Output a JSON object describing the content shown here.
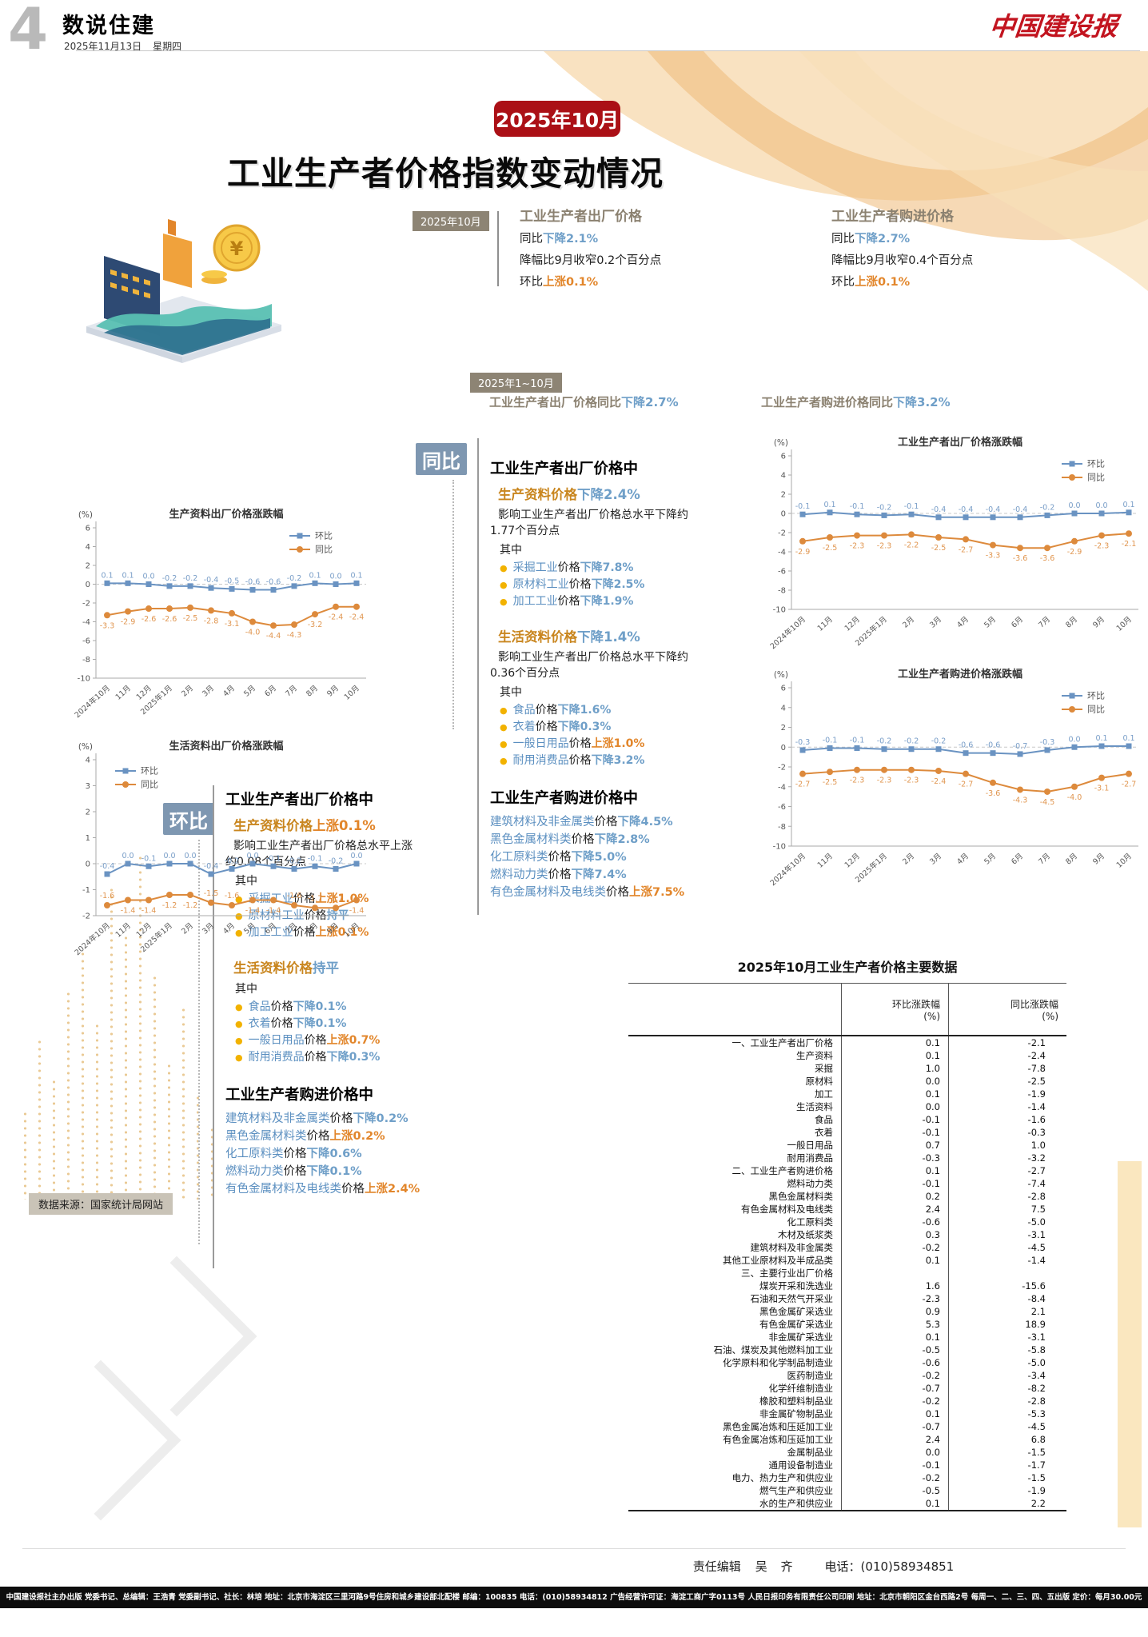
{
  "page": {
    "number": "4",
    "section": "数说住建",
    "date": "2025年11月13日",
    "weekday": "星期四",
    "brand": "中国建设报"
  },
  "hero": {
    "badge": "2025年10月",
    "title": "工业生产者价格指数变动情况"
  },
  "colors": {
    "accent_red": "#ab1016",
    "down_blue": "#6f9fc8",
    "up_orange": "#e2862b",
    "mom_line": "#6a93c2",
    "yoy_line": "#dd8a3c",
    "label_box": "#7e97b1"
  },
  "summary": {
    "badge": "2025年10月",
    "cards": [
      {
        "title": "工业生产者出厂价格",
        "yoy_label": "同比",
        "yoy_verb": "下降",
        "yoy_value": "2.1%",
        "note": "降幅比9月收窄0.2个百分点",
        "mom_label": "环比",
        "mom_verb": "上涨",
        "mom_value": "0.1%"
      },
      {
        "title": "工业生产者购进价格",
        "yoy_label": "同比",
        "yoy_verb": "下降",
        "yoy_value": "2.7%",
        "note": "降幅比9月收窄0.4个百分点",
        "mom_label": "环比",
        "mom_verb": "上涨",
        "mom_value": "0.1%"
      }
    ],
    "ytd_badge": "2025年1~10月",
    "ytd_items": [
      {
        "prefix": "工业生产者出厂价格同比",
        "verb": "下降",
        "value": "2.7%"
      },
      {
        "prefix": "工业生产者购进价格同比",
        "verb": "下降",
        "value": "3.2%"
      }
    ]
  },
  "yoy": {
    "label": "同比",
    "blocks": [
      {
        "type": "heading",
        "text": "工业生产者出厂价格中"
      },
      {
        "type": "subhead",
        "name": "生产资料价格",
        "verb": "下降",
        "value": "2.4%"
      },
      {
        "type": "para",
        "text": "影响工业生产者出厂价格总水平下降约"
      },
      {
        "type": "para2",
        "text": "1.77个百分点"
      },
      {
        "type": "qizhong",
        "text": "其中"
      },
      {
        "type": "bullet",
        "name": "采掘工业",
        "mid": "价格",
        "verb": "下降",
        "value": "7.8%"
      },
      {
        "type": "bullet",
        "name": "原材料工业",
        "mid": "价格",
        "verb": "下降",
        "value": "2.5%"
      },
      {
        "type": "bullet",
        "name": "加工工业",
        "mid": "价格",
        "verb": "下降",
        "value": "1.9%"
      },
      {
        "type": "gap"
      },
      {
        "type": "subhead",
        "name": "生活资料价格",
        "verb": "下降",
        "value": "1.4%"
      },
      {
        "type": "para",
        "text": "影响工业生产者出厂价格总水平下降约"
      },
      {
        "type": "para2",
        "text": "0.36个百分点"
      },
      {
        "type": "qizhong",
        "text": "其中"
      },
      {
        "type": "bullet",
        "name": "食品",
        "mid": "价格",
        "verb": "下降",
        "value": "1.6%"
      },
      {
        "type": "bullet",
        "name": "衣着",
        "mid": "价格",
        "verb": "下降",
        "value": "0.3%"
      },
      {
        "type": "bullet",
        "name": "一般日用品",
        "mid": "价格",
        "verb": "上涨",
        "value": "1.0%"
      },
      {
        "type": "bullet",
        "name": "耐用消费品",
        "mid": "价格",
        "verb": "下降",
        "value": "3.2%"
      },
      {
        "type": "gap"
      },
      {
        "type": "heading",
        "text": "工业生产者购进价格中"
      },
      {
        "type": "item",
        "name": "建筑材料及非金属类",
        "mid": "价格",
        "verb": "下降",
        "value": "4.5%"
      },
      {
        "type": "item",
        "name": "黑色金属材料类",
        "mid": "价格",
        "verb": "下降",
        "value": "2.8%"
      },
      {
        "type": "item",
        "name": "化工原料类",
        "mid": "价格",
        "verb": "下降",
        "value": "5.0%"
      },
      {
        "type": "item",
        "name": "燃料动力类",
        "mid": "价格",
        "verb": "下降",
        "value": "7.4%"
      },
      {
        "type": "item",
        "name": "有色金属材料及电线类",
        "mid": "价格",
        "verb": "上涨",
        "value": "7.5%"
      }
    ]
  },
  "mom": {
    "label": "环比",
    "blocks": [
      {
        "type": "heading",
        "text": "工业生产者出厂价格中"
      },
      {
        "type": "subhead",
        "name": "生产资料价格",
        "verb": "上涨",
        "value": "0.1%"
      },
      {
        "type": "para",
        "text": "影响工业生产者出厂价格总水平上涨"
      },
      {
        "type": "para2",
        "text": "约0.08个百分点"
      },
      {
        "type": "qizhong",
        "text": "其中"
      },
      {
        "type": "bullet",
        "name": "采掘工业",
        "mid": "价格",
        "verb": "上涨",
        "value": "1.0%"
      },
      {
        "type": "bullet",
        "name": "原材料工业",
        "mid": "价格",
        "verb": "持平",
        "value": ""
      },
      {
        "type": "bullet",
        "name": "加工工业",
        "mid": "价格",
        "verb": "上涨",
        "value": "0.1%"
      },
      {
        "type": "gap"
      },
      {
        "type": "subhead",
        "name": "生活资料价格",
        "verb": "持平",
        "value": ""
      },
      {
        "type": "qizhong",
        "text": "其中"
      },
      {
        "type": "bullet",
        "name": "食品",
        "mid": "价格",
        "verb": "下降",
        "value": "0.1%"
      },
      {
        "type": "bullet",
        "name": "衣着",
        "mid": "价格",
        "verb": "下降",
        "value": "0.1%"
      },
      {
        "type": "bullet",
        "name": "一般日用品",
        "mid": "价格",
        "verb": "上涨",
        "value": "0.7%"
      },
      {
        "type": "bullet",
        "name": "耐用消费品",
        "mid": "价格",
        "verb": "下降",
        "value": "0.3%"
      },
      {
        "type": "gap"
      },
      {
        "type": "heading",
        "text": "工业生产者购进价格中"
      },
      {
        "type": "item",
        "name": "建筑材料及非金属类",
        "mid": "价格",
        "verb": "下降",
        "value": "0.2%"
      },
      {
        "type": "item",
        "name": "黑色金属材料类",
        "mid": "价格",
        "verb": "上涨",
        "value": "0.2%"
      },
      {
        "type": "item",
        "name": "化工原料类",
        "mid": "价格",
        "verb": "下降",
        "value": "0.6%"
      },
      {
        "type": "item",
        "name": "燃料动力类",
        "mid": "价格",
        "verb": "下降",
        "value": "0.1%"
      },
      {
        "type": "item",
        "name": "有色金属材料及电线类",
        "mid": "价格",
        "verb": "上涨",
        "value": "2.4%"
      }
    ]
  },
  "chart_data": [
    {
      "type": "line",
      "title": "生产资料出厂价格涨跌幅",
      "unit": "(%)",
      "legend": "right",
      "legend_position": "top-right",
      "categories": [
        "2024年10月",
        "11月",
        "12月",
        "2025年1月",
        "2月",
        "3月",
        "4月",
        "5月",
        "6月",
        "7月",
        "8月",
        "9月",
        "10月"
      ],
      "ylim": [
        -10,
        6
      ],
      "yticks": [
        6,
        4,
        2,
        0,
        -2,
        -4,
        -6,
        -8,
        -10
      ],
      "grid": false,
      "series": [
        {
          "name": "环比",
          "color": "#6a93c2",
          "marker": "square",
          "values": [
            0.1,
            0.1,
            0.0,
            -0.2,
            -0.2,
            -0.4,
            -0.5,
            -0.6,
            -0.6,
            -0.2,
            0.1,
            0.0,
            0.1
          ]
        },
        {
          "name": "同比",
          "color": "#dd8a3c",
          "marker": "circle",
          "values": [
            -3.3,
            -2.9,
            -2.6,
            -2.6,
            -2.5,
            -2.8,
            -3.1,
            -4.0,
            -4.4,
            -4.3,
            -3.2,
            -2.4,
            -2.4
          ]
        }
      ]
    },
    {
      "type": "line",
      "title": "生活资料出厂价格涨跌幅",
      "unit": "(%)",
      "legend": "left",
      "legend_position": "top-left",
      "categories": [
        "2024年10月",
        "11月",
        "12月",
        "2025年1月",
        "2月",
        "3月",
        "4月",
        "5月",
        "6月",
        "7月",
        "8月",
        "9月",
        "10月"
      ],
      "ylim": [
        -2,
        4
      ],
      "yticks": [
        4,
        3,
        2,
        1,
        0,
        -1,
        -2
      ],
      "grid": false,
      "series": [
        {
          "name": "环比",
          "color": "#6a93c2",
          "marker": "square",
          "values": [
            -0.4,
            0.0,
            -0.1,
            0.0,
            0.0,
            -0.4,
            -0.2,
            0.0,
            -0.1,
            -0.2,
            -0.1,
            -0.2,
            0.0
          ]
        },
        {
          "name": "同比",
          "color": "#dd8a3c",
          "marker": "circle",
          "values": [
            -1.6,
            -1.4,
            -1.4,
            -1.2,
            -1.2,
            -1.5,
            -1.6,
            -1.4,
            -1.4,
            -1.6,
            -1.7,
            -1.7,
            -1.4
          ]
        }
      ]
    },
    {
      "type": "line",
      "title": "工业生产者出厂价格涨跌幅",
      "unit": "(%)",
      "legend": "right",
      "legend_position": "top-right",
      "categories": [
        "2024年10月",
        "11月",
        "12月",
        "2025年1月",
        "2月",
        "3月",
        "4月",
        "5月",
        "6月",
        "7月",
        "8月",
        "9月",
        "10月"
      ],
      "ylim": [
        -10,
        6
      ],
      "yticks": [
        6,
        4,
        2,
        0,
        -2,
        -4,
        -6,
        -8,
        -10
      ],
      "grid": false,
      "series": [
        {
          "name": "环比",
          "color": "#6a93c2",
          "marker": "square",
          "values": [
            -0.1,
            0.1,
            -0.1,
            -0.2,
            -0.1,
            -0.4,
            -0.4,
            -0.4,
            -0.4,
            -0.2,
            0.0,
            0.0,
            0.1
          ]
        },
        {
          "name": "同比",
          "color": "#dd8a3c",
          "marker": "circle",
          "values": [
            -2.9,
            -2.5,
            -2.3,
            -2.3,
            -2.2,
            -2.5,
            -2.7,
            -3.3,
            -3.6,
            -3.6,
            -2.9,
            -2.3,
            -2.1
          ]
        }
      ]
    },
    {
      "type": "line",
      "title": "工业生产者购进价格涨跌幅",
      "unit": "(%)",
      "legend": "right",
      "legend_position": "top-right",
      "categories": [
        "2024年10月",
        "11月",
        "12月",
        "2025年1月",
        "2月",
        "3月",
        "4月",
        "5月",
        "6月",
        "7月",
        "8月",
        "9月",
        "10月"
      ],
      "ylim": [
        -10,
        6
      ],
      "yticks": [
        6,
        4,
        2,
        0,
        -2,
        -4,
        -6,
        -8,
        -10
      ],
      "grid": false,
      "series": [
        {
          "name": "环比",
          "color": "#6a93c2",
          "marker": "square",
          "values": [
            -0.3,
            -0.1,
            -0.1,
            -0.2,
            -0.2,
            -0.2,
            -0.6,
            -0.6,
            -0.7,
            -0.3,
            0.0,
            0.1,
            0.1
          ]
        },
        {
          "name": "同比",
          "color": "#dd8a3c",
          "marker": "circle",
          "values": [
            -2.7,
            -2.5,
            -2.3,
            -2.3,
            -2.3,
            -2.4,
            -2.7,
            -3.6,
            -4.3,
            -4.5,
            -4.0,
            -3.1,
            -2.7
          ]
        }
      ]
    }
  ],
  "table": {
    "title": "2025年10月工业生产者价格主要数据",
    "col_headers": [
      {
        "label": "环比涨跌幅",
        "unit": "(%)"
      },
      {
        "label": "同比涨跌幅",
        "unit": "(%)"
      }
    ],
    "rows": [
      {
        "label": "一、工业生产者出厂价格",
        "mom": "0.1",
        "yoy": "-2.1"
      },
      {
        "label": "生产资料",
        "mom": "0.1",
        "yoy": "-2.4"
      },
      {
        "label": "采掘",
        "mom": "1.0",
        "yoy": "-7.8"
      },
      {
        "label": "原材料",
        "mom": "0.0",
        "yoy": "-2.5"
      },
      {
        "label": "加工",
        "mom": "0.1",
        "yoy": "-1.9"
      },
      {
        "label": "生活资料",
        "mom": "0.0",
        "yoy": "-1.4"
      },
      {
        "label": "食品",
        "mom": "-0.1",
        "yoy": "-1.6"
      },
      {
        "label": "衣着",
        "mom": "-0.1",
        "yoy": "-0.3"
      },
      {
        "label": "一般日用品",
        "mom": "0.7",
        "yoy": "1.0"
      },
      {
        "label": "耐用消费品",
        "mom": "-0.3",
        "yoy": "-3.2"
      },
      {
        "label": "二、工业生产者购进价格",
        "mom": "0.1",
        "yoy": "-2.7"
      },
      {
        "label": "燃料动力类",
        "mom": "-0.1",
        "yoy": "-7.4"
      },
      {
        "label": "黑色金属材料类",
        "mom": "0.2",
        "yoy": "-2.8"
      },
      {
        "label": "有色金属材料及电线类",
        "mom": "2.4",
        "yoy": "7.5"
      },
      {
        "label": "化工原料类",
        "mom": "-0.6",
        "yoy": "-5.0"
      },
      {
        "label": "木材及纸浆类",
        "mom": "0.3",
        "yoy": "-3.1"
      },
      {
        "label": "建筑材料及非金属类",
        "mom": "-0.2",
        "yoy": "-4.5"
      },
      {
        "label": "其他工业原材料及半成品类",
        "mom": "0.1",
        "yoy": "-1.4"
      },
      {
        "label": "三、主要行业出厂价格",
        "mom": "",
        "yoy": ""
      },
      {
        "label": "煤炭开采和洗选业",
        "mom": "1.6",
        "yoy": "-15.6"
      },
      {
        "label": "石油和天然气开采业",
        "mom": "-2.3",
        "yoy": "-8.4"
      },
      {
        "label": "黑色金属矿采选业",
        "mom": "0.9",
        "yoy": "2.1"
      },
      {
        "label": "有色金属矿采选业",
        "mom": "5.3",
        "yoy": "18.9"
      },
      {
        "label": "非金属矿采选业",
        "mom": "0.1",
        "yoy": "-3.1"
      },
      {
        "label": "石油、煤炭及其他燃料加工业",
        "mom": "-0.5",
        "yoy": "-5.8"
      },
      {
        "label": "化学原料和化学制品制造业",
        "mom": "-0.6",
        "yoy": "-5.0"
      },
      {
        "label": "医药制造业",
        "mom": "-0.2",
        "yoy": "-3.4"
      },
      {
        "label": "化学纤维制造业",
        "mom": "-0.7",
        "yoy": "-8.2"
      },
      {
        "label": "橡胶和塑料制品业",
        "mom": "-0.2",
        "yoy": "-2.8"
      },
      {
        "label": "非金属矿物制品业",
        "mom": "0.1",
        "yoy": "-5.3"
      },
      {
        "label": "黑色金属冶炼和压延加工业",
        "mom": "-0.7",
        "yoy": "-4.5"
      },
      {
        "label": "有色金属冶炼和压延加工业",
        "mom": "2.4",
        "yoy": "6.8"
      },
      {
        "label": "金属制品业",
        "mom": "0.0",
        "yoy": "-1.5"
      },
      {
        "label": "通用设备制造业",
        "mom": "-0.1",
        "yoy": "-1.7"
      },
      {
        "label": "电力、热力生产和供应业",
        "mom": "-0.2",
        "yoy": "-1.5"
      },
      {
        "label": "燃气生产和供应业",
        "mom": "-0.5",
        "yoy": "-1.9"
      },
      {
        "label": "水的生产和供应业",
        "mom": "0.1",
        "yoy": "2.2"
      }
    ]
  },
  "footer": {
    "source": "数据来源：国家统计局网站",
    "editor_label": "责任编辑",
    "editor_name": "吴 齐",
    "phone": "电话：(010)58934851",
    "imprint": "中国建设报社主办出版 党委书记、总编辑：王浩青 党委副书记、社长：林培 地址：北京市海淀区三里河路9号住房和城乡建设部北配楼 邮编：100835 电话：(010)58934812 广告经营许可证：海淀工商广字0113号 人民日报印务有限责任公司印刷 地址：北京市朝阳区金台西路2号 每周一、二、三、四、五出版 定价：每月30.00元"
  }
}
